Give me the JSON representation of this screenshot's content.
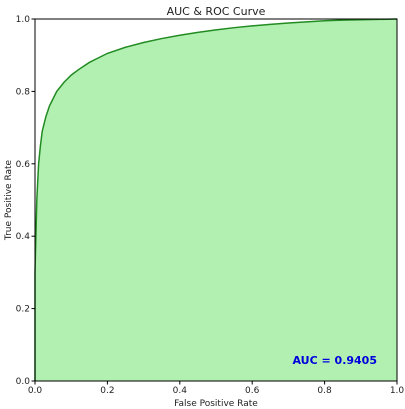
{
  "chart_data": {
    "type": "area",
    "title": "AUC & ROC Curve",
    "xlabel": "False Positive Rate",
    "ylabel": "True Positive Rate",
    "xlim": [
      0.0,
      1.0
    ],
    "ylim": [
      0.0,
      1.0
    ],
    "x_ticks": [
      "0.0",
      "0.2",
      "0.4",
      "0.6",
      "0.8",
      "1.0"
    ],
    "y_ticks": [
      "0.0",
      "0.2",
      "0.4",
      "0.6",
      "0.8",
      "1.0"
    ],
    "grid": false,
    "annotation": "AUC = 0.9405",
    "annotation_color": "#0000dd",
    "line_color": "#228b22",
    "fill_color": "#b2f0b2",
    "series": [
      {
        "x": [
          0.0,
          0.0,
          0.005,
          0.01,
          0.015,
          0.02,
          0.03,
          0.04,
          0.05,
          0.06,
          0.08,
          0.1,
          0.12,
          0.15,
          0.18,
          0.2,
          0.25,
          0.3,
          0.35,
          0.4,
          0.45,
          0.5,
          0.55,
          0.6,
          0.65,
          0.7,
          0.75,
          0.8,
          0.85,
          0.9,
          0.95,
          1.0
        ],
        "y": [
          0.0,
          0.3,
          0.5,
          0.6,
          0.65,
          0.69,
          0.73,
          0.76,
          0.78,
          0.8,
          0.825,
          0.845,
          0.86,
          0.88,
          0.895,
          0.905,
          0.922,
          0.935,
          0.946,
          0.955,
          0.963,
          0.97,
          0.976,
          0.981,
          0.985,
          0.989,
          0.992,
          0.995,
          0.997,
          0.998,
          0.999,
          1.0
        ]
      }
    ]
  }
}
